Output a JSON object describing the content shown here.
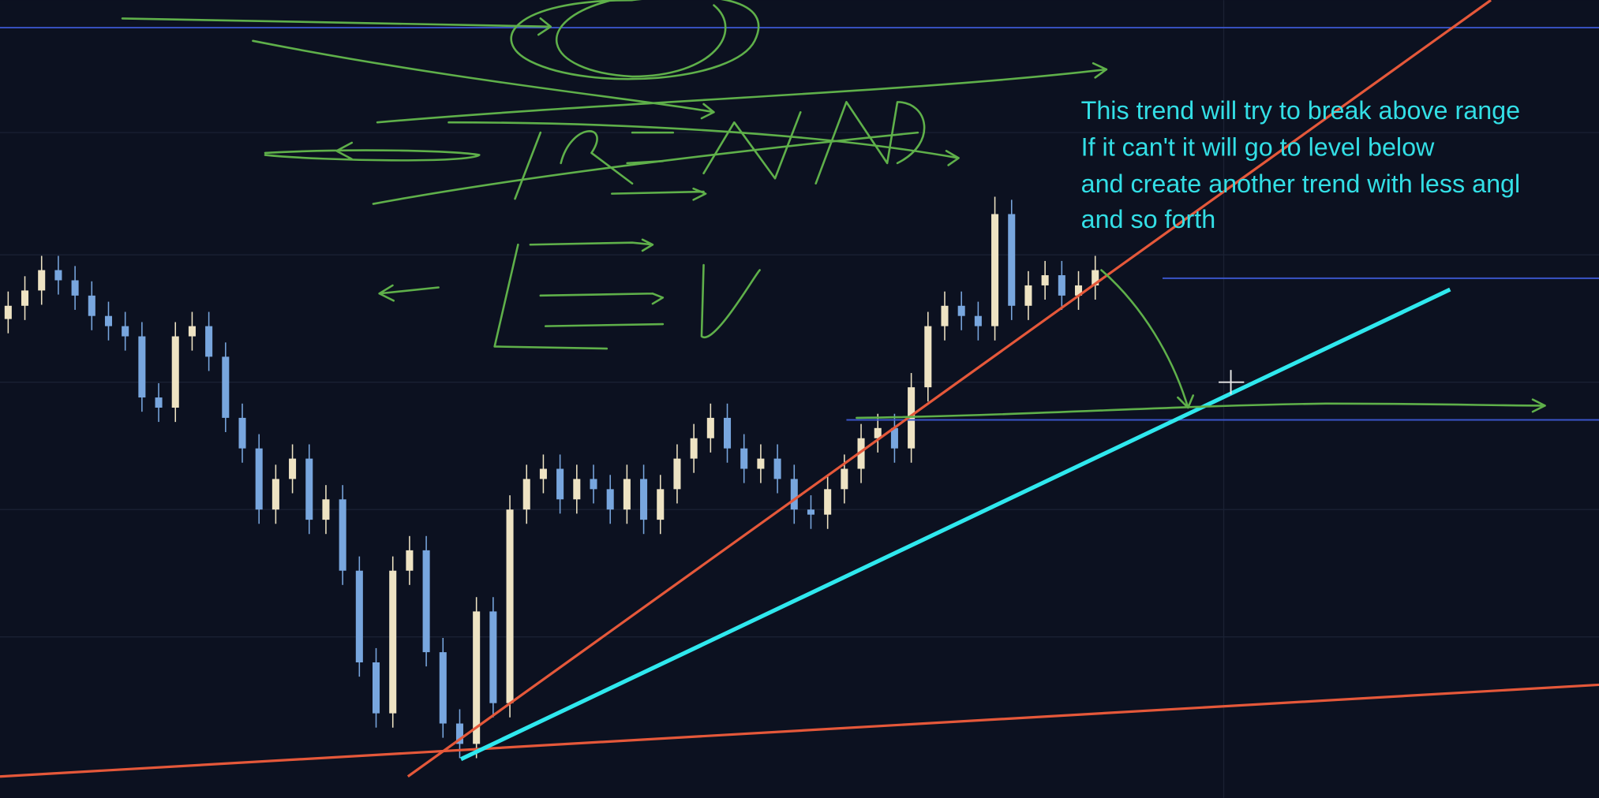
{
  "chart_data": {
    "type": "candlestick",
    "open": [
      470,
      483,
      498,
      518,
      508,
      493,
      473,
      463,
      453,
      393,
      383,
      453,
      463,
      433,
      373,
      343,
      283,
      313,
      333,
      273,
      293,
      223,
      133,
      83,
      223,
      243,
      143,
      73,
      53,
      183,
      93,
      283,
      313,
      323,
      293,
      313,
      303,
      283,
      313,
      273,
      303,
      333,
      353,
      373,
      343,
      323,
      333,
      313,
      283,
      278,
      303,
      323,
      353,
      363,
      343,
      403,
      463,
      483,
      473,
      463,
      573,
      483,
      503,
      513,
      493,
      503
    ],
    "high": [
      497,
      512,
      532,
      532,
      522,
      507,
      487,
      477,
      467,
      407,
      467,
      477,
      477,
      447,
      387,
      357,
      327,
      347,
      347,
      307,
      307,
      237,
      147,
      237,
      257,
      257,
      157,
      87,
      197,
      197,
      297,
      327,
      337,
      337,
      327,
      327,
      317,
      327,
      327,
      317,
      347,
      367,
      387,
      387,
      357,
      347,
      347,
      327,
      297,
      317,
      337,
      367,
      377,
      377,
      417,
      477,
      497,
      497,
      487,
      590,
      587,
      517,
      527,
      527,
      517,
      532
    ],
    "low": [
      456,
      469,
      484,
      494,
      479,
      459,
      449,
      439,
      379,
      369,
      369,
      439,
      419,
      359,
      329,
      269,
      269,
      299,
      259,
      259,
      209,
      119,
      69,
      69,
      209,
      129,
      59,
      39,
      39,
      79,
      79,
      269,
      299,
      279,
      279,
      289,
      269,
      269,
      259,
      259,
      289,
      319,
      339,
      329,
      309,
      309,
      299,
      269,
      264,
      264,
      289,
      309,
      339,
      329,
      329,
      389,
      449,
      459,
      449,
      449,
      469,
      469,
      489,
      479,
      479,
      489
    ],
    "close": [
      483,
      498,
      518,
      508,
      493,
      473,
      463,
      453,
      393,
      383,
      453,
      463,
      433,
      373,
      343,
      283,
      313,
      333,
      273,
      293,
      223,
      133,
      83,
      223,
      243,
      143,
      73,
      53,
      183,
      93,
      283,
      313,
      323,
      293,
      313,
      303,
      283,
      313,
      273,
      303,
      333,
      353,
      373,
      343,
      323,
      333,
      313,
      283,
      278,
      303,
      323,
      353,
      363,
      343,
      403,
      463,
      483,
      473,
      463,
      573,
      483,
      503,
      513,
      493,
      503,
      518
    ],
    "ylim": [
      0,
      783
    ],
    "up_color": "#eee3c3",
    "down_color": "#78a6de",
    "annotation": [
      "This trend will try to break above range",
      "If it can't it will go to level below",
      "and create another trend with less angl",
      "and so forth"
    ]
  }
}
